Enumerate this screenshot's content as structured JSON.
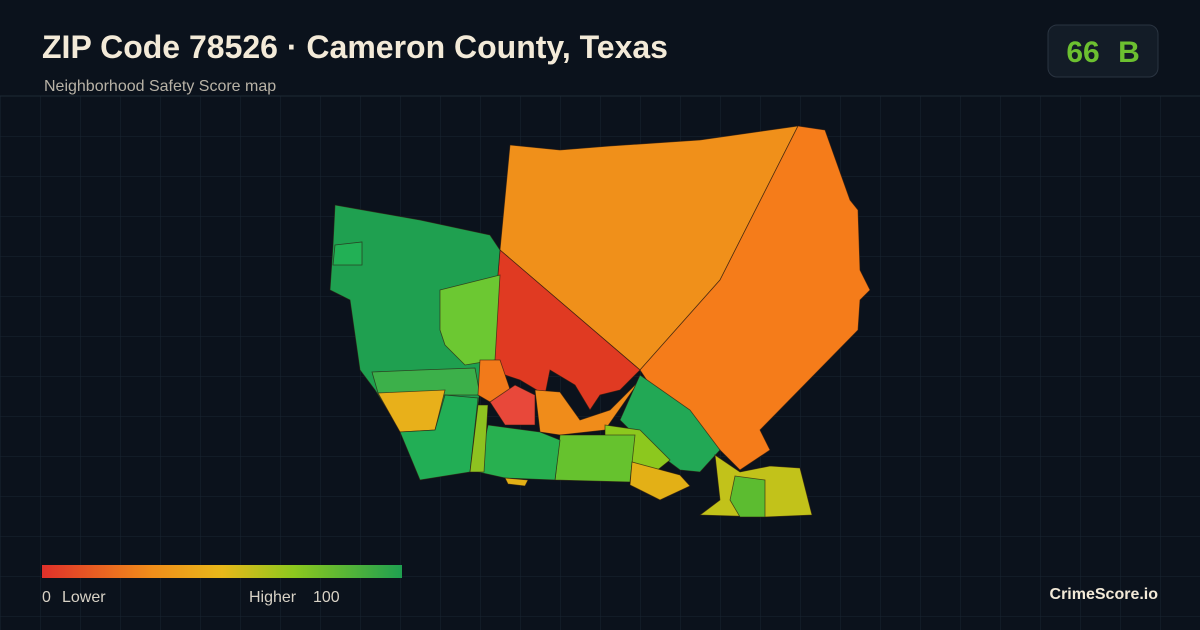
{
  "header": {
    "title": "ZIP Code 78526 · Cameron County, Texas",
    "subtitle": "Neighborhood Safety Score map"
  },
  "badge": {
    "score": "66",
    "grade": "B"
  },
  "legend": {
    "min": "0",
    "min_label": "Lower",
    "max_label": "Higher",
    "max": "100"
  },
  "brand": "CrimeScore.io"
}
